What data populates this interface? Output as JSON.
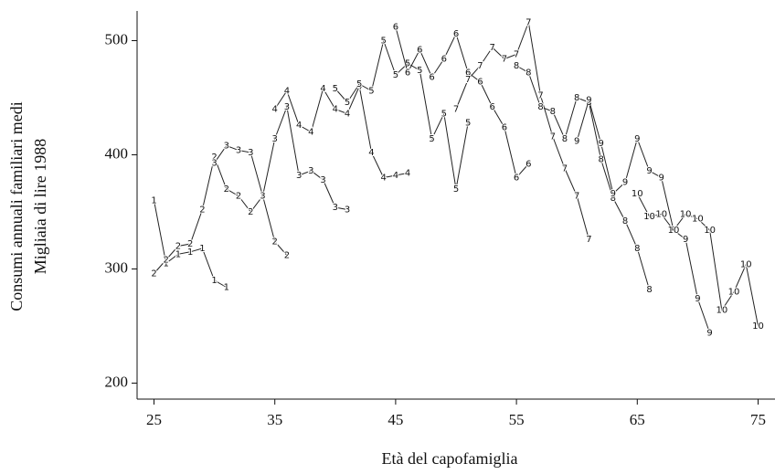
{
  "chart_data": {
    "type": "line",
    "xlabel": "Età del capofamiglia",
    "ylabel": [
      "Consumi annuali familiari medi",
      "Migliaia di lire 1988"
    ],
    "xlim": [
      23.6,
      76.4
    ],
    "ylim": [
      186,
      526
    ],
    "xticks": [
      25,
      35,
      45,
      55,
      65,
      75
    ],
    "yticks": [
      200,
      300,
      400,
      500
    ],
    "color": "#222222",
    "series": [
      {
        "name": "1",
        "x": [
          25,
          26,
          27,
          28,
          29,
          30,
          31
        ],
        "values": [
          360,
          305,
          313,
          315,
          318,
          290,
          284
        ]
      },
      {
        "name": "2",
        "x": [
          25,
          26,
          27,
          28,
          29,
          30,
          31,
          32,
          33,
          34,
          35,
          36
        ],
        "values": [
          296,
          308,
          320,
          322,
          352,
          398,
          370,
          364,
          350,
          364,
          324,
          312
        ]
      },
      {
        "name": "3",
        "x": [
          30,
          31,
          32,
          33,
          34,
          35,
          36,
          37,
          38,
          39,
          40,
          41
        ],
        "values": [
          393,
          408,
          404,
          402,
          364,
          414,
          442,
          382,
          386,
          378,
          354,
          352
        ]
      },
      {
        "name": "4",
        "x": [
          35,
          36,
          37,
          38,
          39,
          40,
          41,
          42,
          43,
          44,
          45,
          46
        ],
        "values": [
          440,
          456,
          426,
          420,
          458,
          440,
          436,
          460,
          402,
          380,
          382,
          384
        ]
      },
      {
        "name": "5",
        "x": [
          40,
          41,
          42,
          43,
          44,
          45,
          46,
          47,
          48,
          49,
          50,
          51
        ],
        "values": [
          458,
          446,
          462,
          456,
          500,
          470,
          480,
          474,
          414,
          436,
          370,
          428
        ]
      },
      {
        "name": "6",
        "x": [
          45,
          46,
          47,
          48,
          49,
          50,
          51,
          52,
          53,
          54,
          55,
          56
        ],
        "values": [
          512,
          472,
          492,
          468,
          484,
          506,
          472,
          464,
          442,
          424,
          380,
          392
        ]
      },
      {
        "name": "7",
        "x": [
          50,
          51,
          52,
          53,
          54,
          55,
          56,
          57,
          58,
          59,
          60,
          61
        ],
        "values": [
          440,
          466,
          478,
          494,
          484,
          488,
          516,
          452,
          416,
          388,
          364,
          326
        ]
      },
      {
        "name": "8",
        "x": [
          55,
          56,
          57,
          58,
          59,
          60,
          61,
          62,
          63,
          64,
          65,
          66
        ],
        "values": [
          478,
          472,
          442,
          438,
          414,
          450,
          446,
          396,
          362,
          342,
          318,
          282
        ]
      },
      {
        "name": "9",
        "x": [
          60,
          61,
          62,
          63,
          64,
          65,
          66,
          67,
          68,
          69,
          70,
          71
        ],
        "values": [
          412,
          448,
          410,
          366,
          376,
          414,
          386,
          380,
          334,
          326,
          274,
          244
        ]
      },
      {
        "name": "10",
        "x": [
          65,
          66,
          67,
          68,
          69,
          70,
          71,
          72,
          73,
          74,
          75
        ],
        "values": [
          366,
          346,
          348,
          334,
          348,
          344,
          334,
          264,
          280,
          304,
          250
        ]
      }
    ]
  }
}
